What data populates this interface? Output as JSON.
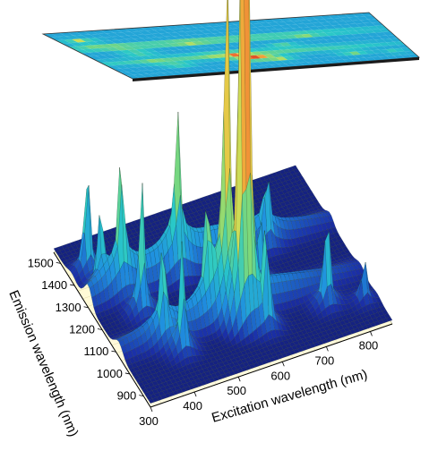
{
  "chart_data": {
    "type": "surface3d",
    "title": "",
    "xlabel": "Excitation wavelength  (nm)",
    "ylabel": "Emission wavelength  (nm)",
    "zlabel": "",
    "xlim": [
      300,
      850
    ],
    "ylim": [
      850,
      1550
    ],
    "x_ticks": [
      "300",
      "400",
      "500",
      "600",
      "700",
      "800"
    ],
    "y_ticks": [
      "900",
      "1000",
      "1100",
      "1200",
      "1300",
      "1400",
      "1500"
    ],
    "colormap": [
      "#0a0a3c",
      "#1b2fa8",
      "#1f8fe0",
      "#29c8c8",
      "#7ed87a",
      "#c8e05a",
      "#f0c040",
      "#f07030",
      "#c81e14"
    ],
    "projection_plane": "top",
    "peaks": [
      {
        "excitation": 335,
        "emission": 1420,
        "intensity": 0.3
      },
      {
        "excitation": 340,
        "emission": 1340,
        "intensity": 0.22
      },
      {
        "excitation": 375,
        "emission": 1300,
        "intensity": 0.32
      },
      {
        "excitation": 390,
        "emission": 1200,
        "intensity": 0.36
      },
      {
        "excitation": 395,
        "emission": 1060,
        "intensity": 0.24
      },
      {
        "excitation": 420,
        "emission": 1000,
        "intensity": 0.3
      },
      {
        "excitation": 500,
        "emission": 1290,
        "intensity": 0.36
      },
      {
        "excitation": 505,
        "emission": 1090,
        "intensity": 0.26
      },
      {
        "excitation": 545,
        "emission": 1080,
        "intensity": 0.9
      },
      {
        "excitation": 560,
        "emission": 1020,
        "intensity": 1.0
      },
      {
        "excitation": 575,
        "emission": 1020,
        "intensity": 0.96
      },
      {
        "excitation": 605,
        "emission": 980,
        "intensity": 0.3
      },
      {
        "excitation": 645,
        "emission": 1160,
        "intensity": 0.22
      },
      {
        "excitation": 700,
        "emission": 1280,
        "intensity": 0.18
      },
      {
        "excitation": 745,
        "emission": 990,
        "intensity": 0.27
      },
      {
        "excitation": 820,
        "emission": 960,
        "intensity": 0.12
      }
    ]
  }
}
